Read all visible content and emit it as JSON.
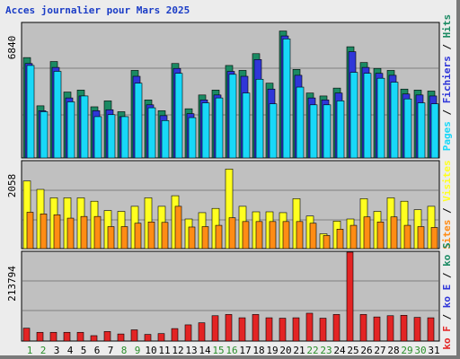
{
  "title": "Acces journalier pour Mars 2025",
  "colors": {
    "hits": "#1b8a63",
    "files": "#2f36d8",
    "pages": "#18d8f8",
    "visites": "#ffff20",
    "sites": "#ff8c14",
    "kb": "#e32424",
    "day_label": "#1e6b1e",
    "weekend_label": "#2a8f2a",
    "ymax_label": "#000000"
  },
  "chart_data": [
    {
      "type": "bar",
      "name": "hits-files-pages",
      "ymax_label": "6840",
      "ylim": [
        0,
        6840
      ],
      "categories": [
        "1",
        "2",
        "3",
        "4",
        "5",
        "6",
        "7",
        "8",
        "9",
        "10",
        "11",
        "12",
        "13",
        "14",
        "15",
        "16",
        "17",
        "18",
        "19",
        "20",
        "21",
        "22",
        "23",
        "24",
        "25",
        "26",
        "27",
        "28",
        "29",
        "30",
        "31"
      ],
      "series": [
        {
          "name": "Hits",
          "values": [
            5100,
            2650,
            4900,
            3350,
            3450,
            2600,
            2900,
            2350,
            4450,
            2950,
            2400,
            4800,
            2500,
            3200,
            3450,
            4700,
            4450,
            5300,
            3800,
            6450,
            4500,
            3300,
            3150,
            3550,
            5650,
            4850,
            4550,
            4450,
            3500,
            3450,
            3400
          ]
        },
        {
          "name": "Fichiers",
          "values": [
            4800,
            2400,
            4600,
            3050,
            3150,
            2400,
            2450,
            2100,
            4150,
            2700,
            2150,
            4550,
            2250,
            2950,
            3200,
            4400,
            4150,
            5000,
            3500,
            6200,
            4200,
            3050,
            2950,
            3300,
            5400,
            4600,
            4300,
            4200,
            3250,
            3200,
            3150
          ]
        },
        {
          "name": "Pages",
          "values": [
            4700,
            2350,
            4400,
            2850,
            3150,
            2100,
            2200,
            2100,
            3800,
            2550,
            1900,
            4300,
            2050,
            2800,
            3050,
            4250,
            3300,
            4000,
            2750,
            6050,
            3600,
            2700,
            2700,
            2900,
            4350,
            4300,
            4050,
            3850,
            3000,
            2800,
            2750
          ]
        }
      ]
    },
    {
      "type": "bar",
      "name": "visites-sites",
      "ymax_label": "2058",
      "ylim": [
        0,
        2058
      ],
      "categories": [
        "1",
        "2",
        "3",
        "4",
        "5",
        "6",
        "7",
        "8",
        "9",
        "10",
        "11",
        "12",
        "13",
        "14",
        "15",
        "16",
        "17",
        "18",
        "19",
        "20",
        "21",
        "22",
        "23",
        "24",
        "25",
        "26",
        "27",
        "28",
        "29",
        "30",
        "31"
      ],
      "series": [
        {
          "name": "Visites",
          "values": [
            1600,
            1400,
            1200,
            1200,
            1200,
            1120,
            900,
            880,
            1000,
            1200,
            1000,
            1250,
            700,
            850,
            950,
            1880,
            1000,
            870,
            870,
            850,
            1180,
            770,
            350,
            650,
            700,
            1180,
            880,
            1200,
            1120,
            920,
            1000
          ]
        },
        {
          "name": "Sites",
          "values": [
            860,
            820,
            800,
            720,
            760,
            760,
            520,
            520,
            600,
            630,
            620,
            1000,
            510,
            520,
            550,
            730,
            640,
            640,
            640,
            640,
            640,
            600,
            310,
            460,
            550,
            750,
            630,
            750,
            550,
            520,
            500
          ]
        }
      ]
    },
    {
      "type": "bar",
      "name": "kb",
      "ymax_label": "213794",
      "ylim": [
        0,
        213794
      ],
      "categories": [
        "1",
        "2",
        "3",
        "4",
        "5",
        "6",
        "7",
        "8",
        "9",
        "10",
        "11",
        "12",
        "13",
        "14",
        "15",
        "16",
        "17",
        "18",
        "19",
        "20",
        "21",
        "22",
        "23",
        "24",
        "25",
        "26",
        "27",
        "28",
        "29",
        "30",
        "31"
      ],
      "series": [
        {
          "name": "ko F",
          "values": [
            31000,
            21000,
            21000,
            21000,
            21000,
            13000,
            23000,
            17000,
            27000,
            16000,
            18000,
            30000,
            39000,
            44000,
            61000,
            64000,
            56000,
            64000,
            56000,
            55000,
            56000,
            67000,
            55000,
            64000,
            213794,
            64000,
            58000,
            61000,
            62000,
            57000,
            56000
          ]
        }
      ]
    }
  ],
  "right_legends": [
    {
      "items": [
        {
          "text": "Pages",
          "color": "#18d8f8"
        },
        {
          "text": " / ",
          "color": "#000000"
        },
        {
          "text": "Fichiers",
          "color": "#2f36d8"
        },
        {
          "text": " / ",
          "color": "#000000"
        },
        {
          "text": "Hits",
          "color": "#1b8a63"
        }
      ]
    },
    {
      "items": [
        {
          "text": "Sites",
          "color": "#ff8c14"
        },
        {
          "text": " / ",
          "color": "#000000"
        },
        {
          "text": "Visites",
          "color": "#ffff20"
        }
      ]
    },
    {
      "items": [
        {
          "text": "ko F",
          "color": "#e32424"
        },
        {
          "text": " / ",
          "color": "#000000"
        },
        {
          "text": "ko E",
          "color": "#2f36d8"
        },
        {
          "text": " / ",
          "color": "#000000"
        },
        {
          "text": "ko S",
          "color": "#1b8a63"
        }
      ]
    }
  ],
  "day_labels": [
    "1",
    "2",
    "3",
    "4",
    "5",
    "6",
    "7",
    "8",
    "9",
    "10",
    "11",
    "12",
    "13",
    "14",
    "15",
    "16",
    "17",
    "18",
    "19",
    "20",
    "21",
    "22",
    "23",
    "24",
    "25",
    "26",
    "27",
    "28",
    "29",
    "30",
    "31"
  ],
  "weekend_days": [
    "1",
    "2",
    "8",
    "9",
    "15",
    "16",
    "22",
    "23",
    "29",
    "30"
  ]
}
